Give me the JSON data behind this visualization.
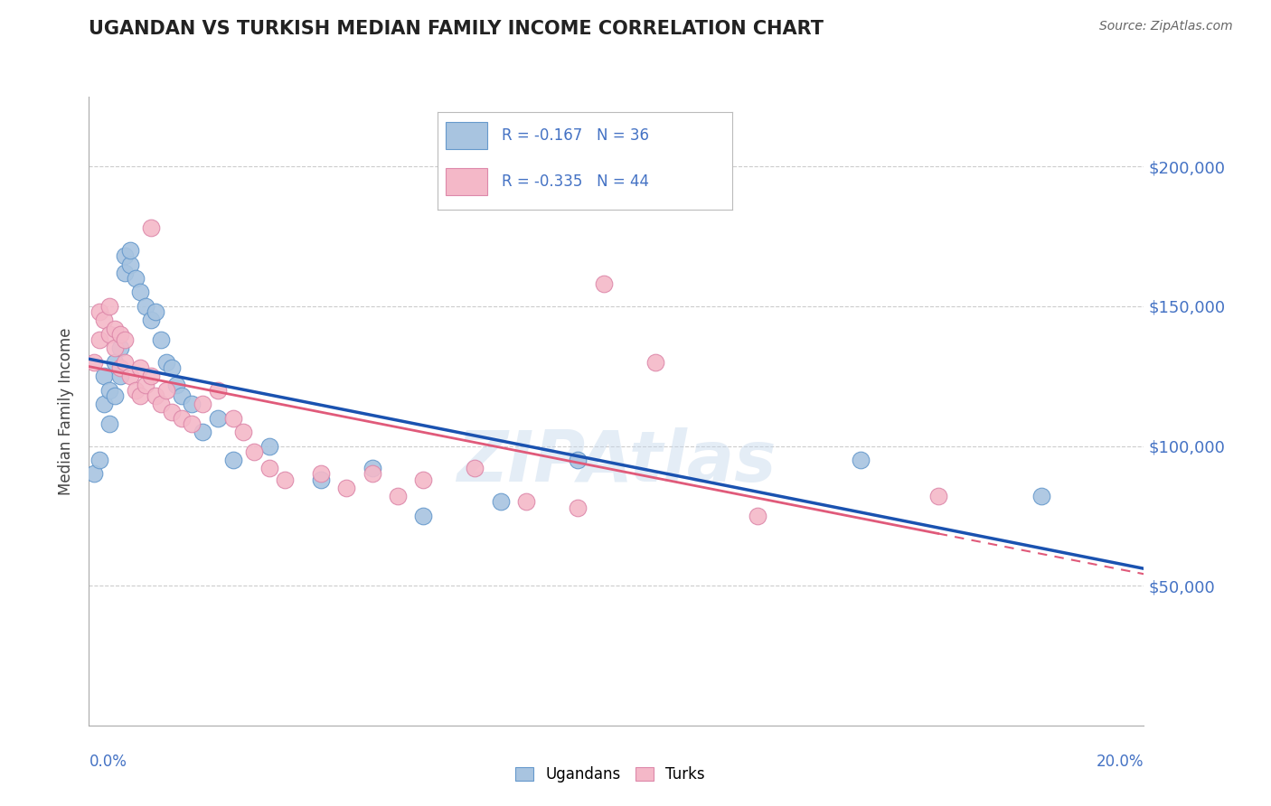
{
  "title": "UGANDAN VS TURKISH MEDIAN FAMILY INCOME CORRELATION CHART",
  "source": "Source: ZipAtlas.com",
  "ylabel": "Median Family Income",
  "y_ticks": [
    50000,
    100000,
    150000,
    200000
  ],
  "y_tick_labels": [
    "$50,000",
    "$100,000",
    "$150,000",
    "$200,000"
  ],
  "xlim": [
    0.0,
    0.205
  ],
  "ylim": [
    0,
    225000
  ],
  "ugandan_R": "-0.167",
  "ugandan_N": "36",
  "turkish_R": "-0.335",
  "turkish_N": "44",
  "ugandan_color": "#a8c4e0",
  "ugandan_edge_color": "#6699cc",
  "ugandan_line_color": "#1a52b0",
  "turkish_color": "#f4b8c8",
  "turkish_edge_color": "#dd88aa",
  "turkish_line_color": "#e05a7a",
  "watermark": "ZIPAtlas",
  "title_color": "#222222",
  "source_color": "#666666",
  "label_color": "#4472c4",
  "grid_color": "#cccccc",
  "ugandan_x": [
    0.001,
    0.002,
    0.003,
    0.003,
    0.004,
    0.004,
    0.005,
    0.005,
    0.006,
    0.006,
    0.007,
    0.007,
    0.008,
    0.008,
    0.009,
    0.01,
    0.011,
    0.012,
    0.013,
    0.014,
    0.015,
    0.016,
    0.017,
    0.018,
    0.02,
    0.022,
    0.025,
    0.028,
    0.035,
    0.045,
    0.055,
    0.065,
    0.08,
    0.095,
    0.15,
    0.185
  ],
  "ugandan_y": [
    90000,
    95000,
    115000,
    125000,
    108000,
    120000,
    130000,
    118000,
    125000,
    135000,
    162000,
    168000,
    165000,
    170000,
    160000,
    155000,
    150000,
    145000,
    148000,
    138000,
    130000,
    128000,
    122000,
    118000,
    115000,
    105000,
    110000,
    95000,
    100000,
    88000,
    92000,
    75000,
    80000,
    95000,
    95000,
    82000
  ],
  "turkish_x": [
    0.001,
    0.002,
    0.002,
    0.003,
    0.004,
    0.004,
    0.005,
    0.005,
    0.006,
    0.006,
    0.007,
    0.007,
    0.008,
    0.009,
    0.01,
    0.01,
    0.011,
    0.012,
    0.012,
    0.013,
    0.014,
    0.015,
    0.016,
    0.018,
    0.02,
    0.022,
    0.025,
    0.028,
    0.03,
    0.032,
    0.035,
    0.038,
    0.045,
    0.05,
    0.055,
    0.06,
    0.065,
    0.075,
    0.085,
    0.095,
    0.1,
    0.11,
    0.13,
    0.165
  ],
  "turkish_y": [
    130000,
    138000,
    148000,
    145000,
    140000,
    150000,
    135000,
    142000,
    128000,
    140000,
    130000,
    138000,
    125000,
    120000,
    118000,
    128000,
    122000,
    178000,
    125000,
    118000,
    115000,
    120000,
    112000,
    110000,
    108000,
    115000,
    120000,
    110000,
    105000,
    98000,
    92000,
    88000,
    90000,
    85000,
    90000,
    82000,
    88000,
    92000,
    80000,
    78000,
    158000,
    130000,
    75000,
    82000
  ]
}
